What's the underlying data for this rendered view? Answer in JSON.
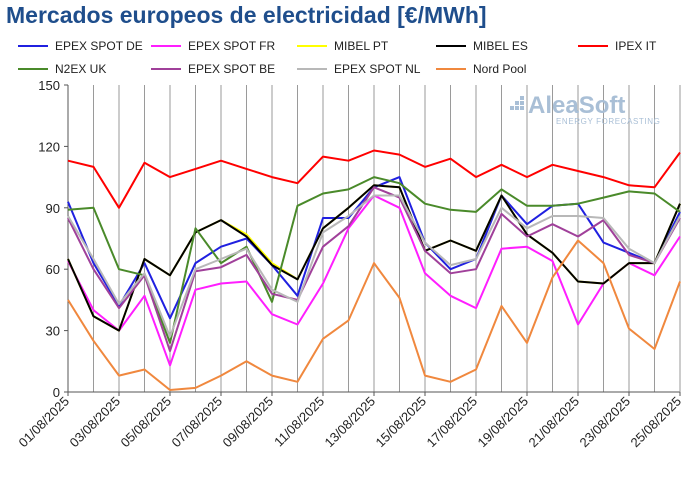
{
  "chart_data": {
    "type": "line",
    "title": "Mercados europeos de electricidad [€/MWh]",
    "xlabel": "",
    "ylabel": "",
    "ylim": [
      0,
      150
    ],
    "yticks": [
      0,
      30,
      60,
      90,
      120,
      150
    ],
    "grid": "vertical",
    "legend_position": "top",
    "x": [
      "01/08/2025",
      "02/08/2025",
      "03/08/2025",
      "04/08/2025",
      "05/08/2025",
      "06/08/2025",
      "07/08/2025",
      "08/08/2025",
      "09/08/2025",
      "10/08/2025",
      "11/08/2025",
      "12/08/2025",
      "13/08/2025",
      "14/08/2025",
      "15/08/2025",
      "16/08/2025",
      "17/08/2025",
      "18/08/2025",
      "19/08/2025",
      "20/08/2025",
      "21/08/2025",
      "22/08/2025",
      "23/08/2025",
      "24/08/2025",
      "25/08/2025"
    ],
    "xticks": [
      "01/08/2025",
      "03/08/2025",
      "05/08/2025",
      "07/08/2025",
      "09/08/2025",
      "11/08/2025",
      "13/08/2025",
      "15/08/2025",
      "17/08/2025",
      "19/08/2025",
      "21/08/2025",
      "23/08/2025",
      "25/08/2025"
    ],
    "series": [
      {
        "name": "EPEX SPOT DE",
        "color": "#2020e0",
        "values": [
          93,
          63,
          42,
          63,
          36,
          63,
          71,
          75,
          62,
          47,
          85,
          85,
          100,
          105,
          73,
          60,
          65,
          96,
          82,
          91,
          92,
          73,
          68,
          63,
          88
        ]
      },
      {
        "name": "EPEX SPOT FR",
        "color": "#ff1eff",
        "values": [
          64,
          40,
          30,
          47,
          13,
          50,
          53,
          54,
          38,
          33,
          53,
          80,
          96,
          90,
          58,
          47,
          41,
          70,
          71,
          64,
          33,
          53,
          63,
          57,
          76
        ]
      },
      {
        "name": "MIBEL PT",
        "color": "#ffff00",
        "values": [
          65,
          37,
          30,
          65,
          57,
          78,
          84,
          77,
          63,
          55,
          80,
          90,
          101,
          100,
          69,
          74,
          69,
          96,
          77,
          68,
          54,
          53,
          63,
          63,
          92
        ]
      },
      {
        "name": "MIBEL ES",
        "color": "#000000",
        "values": [
          65,
          37,
          30,
          65,
          57,
          78,
          84,
          76,
          62,
          55,
          80,
          90,
          101,
          100,
          69,
          74,
          69,
          96,
          77,
          68,
          54,
          53,
          63,
          63,
          92
        ]
      },
      {
        "name": "IPEX IT",
        "color": "#ff0000",
        "values": [
          113,
          110,
          90,
          112,
          105,
          109,
          113,
          109,
          105,
          102,
          115,
          113,
          118,
          116,
          110,
          114,
          105,
          111,
          105,
          111,
          108,
          105,
          101,
          100,
          117
        ]
      },
      {
        "name": "N2EX UK",
        "color": "#4a8a2a",
        "values": [
          89,
          90,
          60,
          57,
          24,
          80,
          63,
          71,
          44,
          91,
          97,
          99,
          105,
          102,
          92,
          89,
          88,
          99,
          91,
          91,
          92,
          95,
          98,
          97,
          88
        ]
      },
      {
        "name": "EPEX SPOT BE",
        "color": "#a0409a",
        "values": [
          85,
          60,
          41,
          57,
          20,
          59,
          61,
          67,
          48,
          45,
          71,
          81,
          100,
          95,
          69,
          58,
          60,
          87,
          76,
          82,
          76,
          84,
          67,
          63,
          85
        ]
      },
      {
        "name": "EPEX SPOT NL",
        "color": "#b8b8b8",
        "values": [
          86,
          65,
          43,
          58,
          27,
          60,
          65,
          70,
          50,
          44,
          78,
          86,
          96,
          96,
          73,
          62,
          65,
          90,
          80,
          86,
          86,
          85,
          70,
          63,
          86
        ]
      },
      {
        "name": "Nord Pool",
        "color": "#f0883e",
        "values": [
          45,
          25,
          8,
          11,
          1,
          2,
          8,
          15,
          8,
          5,
          26,
          35,
          63,
          46,
          8,
          5,
          11,
          42,
          24,
          56,
          74,
          63,
          31,
          21,
          54
        ]
      }
    ]
  },
  "logo": {
    "name": "AleaSoft",
    "tagline": "ENERGY FORECASTING"
  }
}
